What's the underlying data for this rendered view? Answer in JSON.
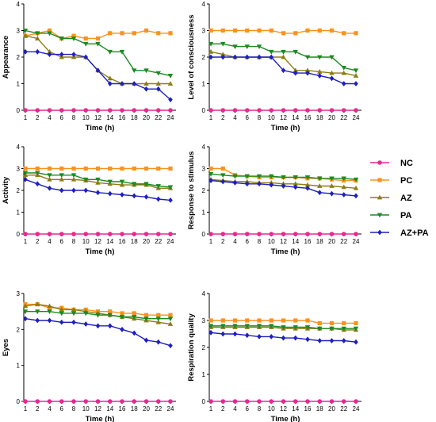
{
  "legend": [
    {
      "name": "NC",
      "color": "#e8298f",
      "marker": "circle"
    },
    {
      "name": "PC",
      "color": "#f7931e",
      "marker": "square"
    },
    {
      "name": "AZ",
      "color": "#8c7d13",
      "marker": "triangle-up"
    },
    {
      "name": "PA",
      "color": "#1c8a21",
      "marker": "triangle-down"
    },
    {
      "name": "AZ+PA",
      "color": "#1f1fbf",
      "marker": "diamond"
    }
  ],
  "chart_data": [
    {
      "type": "line",
      "xlabel": "Time (h)",
      "ylabel": "Appearance",
      "ylim": [
        0,
        4
      ],
      "yticks": [
        "0",
        "1",
        "2",
        "3",
        "4"
      ],
      "x": [
        "1",
        "2",
        "4",
        "6",
        "8",
        "10",
        "12",
        "14",
        "16",
        "18",
        "20",
        "22",
        "24"
      ],
      "series": [
        {
          "name": "NC",
          "values": [
            0,
            0,
            0,
            0,
            0,
            0,
            0,
            0,
            0,
            0,
            0,
            0,
            0
          ]
        },
        {
          "name": "PC",
          "values": [
            2.8,
            2.9,
            3.0,
            2.7,
            2.8,
            2.7,
            2.7,
            2.9,
            2.9,
            2.9,
            3.0,
            2.9,
            2.9
          ]
        },
        {
          "name": "AZ",
          "values": [
            2.8,
            2.7,
            2.2,
            2.0,
            2.0,
            2.0,
            1.5,
            1.2,
            1.0,
            1.0,
            1.0,
            1.0,
            1.0
          ]
        },
        {
          "name": "PA",
          "values": [
            3.0,
            2.9,
            2.9,
            2.7,
            2.7,
            2.5,
            2.5,
            2.2,
            2.2,
            1.5,
            1.5,
            1.4,
            1.3
          ]
        },
        {
          "name": "AZ+PA",
          "values": [
            2.2,
            2.2,
            2.1,
            2.1,
            2.1,
            2.0,
            1.5,
            1.0,
            1.0,
            1.0,
            0.8,
            0.8,
            0.4
          ]
        }
      ]
    },
    {
      "type": "line",
      "xlabel": "Time (h)",
      "ylabel": "Level of consciousness",
      "ylim": [
        0,
        4
      ],
      "yticks": [
        "0",
        "1",
        "2",
        "3",
        "4"
      ],
      "x": [
        "1",
        "2",
        "4",
        "6",
        "8",
        "10",
        "12",
        "14",
        "16",
        "18",
        "20",
        "22",
        "24"
      ],
      "series": [
        {
          "name": "NC",
          "values": [
            0,
            0,
            0,
            0,
            0,
            0,
            0,
            0,
            0,
            0,
            0,
            0,
            0
          ]
        },
        {
          "name": "PC",
          "values": [
            3.0,
            3.0,
            3.0,
            3.0,
            3.0,
            3.0,
            2.9,
            2.9,
            3.0,
            3.0,
            3.0,
            2.9,
            2.9
          ]
        },
        {
          "name": "AZ",
          "values": [
            2.2,
            2.1,
            2.0,
            2.0,
            2.0,
            2.0,
            2.0,
            1.5,
            1.5,
            1.45,
            1.4,
            1.4,
            1.3
          ]
        },
        {
          "name": "PA",
          "values": [
            2.5,
            2.5,
            2.4,
            2.4,
            2.4,
            2.2,
            2.2,
            2.2,
            2.0,
            2.0,
            2.0,
            1.6,
            1.5
          ]
        },
        {
          "name": "AZ+PA",
          "values": [
            2.0,
            2.0,
            2.0,
            2.0,
            2.0,
            2.0,
            1.5,
            1.4,
            1.4,
            1.3,
            1.2,
            1.0,
            1.0
          ]
        }
      ]
    },
    {
      "type": "line",
      "xlabel": "Time (h)",
      "ylabel": "Activity",
      "ylim": [
        0,
        4
      ],
      "yticks": [
        "0",
        "1",
        "2",
        "3",
        "4"
      ],
      "x": [
        "1",
        "2",
        "4",
        "6",
        "8",
        "10",
        "12",
        "14",
        "16",
        "18",
        "20",
        "22",
        "24"
      ],
      "series": [
        {
          "name": "NC",
          "values": [
            0,
            0,
            0,
            0,
            0,
            0,
            0,
            0,
            0,
            0,
            0,
            0,
            0
          ]
        },
        {
          "name": "PC",
          "values": [
            3.0,
            3.0,
            3.0,
            3.0,
            3.0,
            3.0,
            3.0,
            3.0,
            3.0,
            3.0,
            3.0,
            3.0,
            3.0
          ]
        },
        {
          "name": "AZ",
          "values": [
            2.7,
            2.7,
            2.5,
            2.5,
            2.5,
            2.45,
            2.35,
            2.3,
            2.25,
            2.25,
            2.25,
            2.1,
            2.1
          ]
        },
        {
          "name": "PA",
          "values": [
            2.8,
            2.8,
            2.7,
            2.7,
            2.7,
            2.5,
            2.5,
            2.4,
            2.4,
            2.3,
            2.3,
            2.2,
            2.15
          ]
        },
        {
          "name": "AZ+PA",
          "values": [
            2.5,
            2.3,
            2.1,
            2.0,
            2.0,
            2.0,
            1.9,
            1.85,
            1.8,
            1.75,
            1.7,
            1.6,
            1.55
          ]
        }
      ]
    },
    {
      "type": "line",
      "xlabel": "Time (h)",
      "ylabel": "Response to stimulus",
      "ylim": [
        0,
        4
      ],
      "yticks": [
        "0",
        "1",
        "2",
        "3",
        "4"
      ],
      "x": [
        "1",
        "2",
        "4",
        "6",
        "8",
        "10",
        "12",
        "14",
        "16",
        "18",
        "20",
        "22",
        "24"
      ],
      "series": [
        {
          "name": "NC",
          "values": [
            0,
            0,
            0,
            0,
            0,
            0,
            0,
            0,
            0,
            0,
            0,
            0,
            0
          ]
        },
        {
          "name": "PC",
          "values": [
            3.0,
            3.0,
            2.7,
            2.65,
            2.6,
            2.6,
            2.6,
            2.6,
            2.55,
            2.55,
            2.5,
            2.45,
            2.45
          ]
        },
        {
          "name": "AZ",
          "values": [
            2.5,
            2.45,
            2.4,
            2.4,
            2.35,
            2.35,
            2.3,
            2.3,
            2.25,
            2.2,
            2.2,
            2.15,
            2.1
          ]
        },
        {
          "name": "PA",
          "values": [
            2.75,
            2.7,
            2.65,
            2.65,
            2.65,
            2.65,
            2.6,
            2.6,
            2.6,
            2.55,
            2.55,
            2.55,
            2.5
          ]
        },
        {
          "name": "AZ+PA",
          "values": [
            2.45,
            2.4,
            2.35,
            2.3,
            2.3,
            2.25,
            2.2,
            2.15,
            2.1,
            1.9,
            1.85,
            1.8,
            1.75
          ]
        }
      ]
    },
    {
      "type": "line",
      "xlabel": "Time (h)",
      "ylabel": "Eyes",
      "ylim": [
        0,
        3
      ],
      "yticks": [
        "0",
        "1",
        "2",
        "3"
      ],
      "x": [
        "1",
        "2",
        "4",
        "6",
        "8",
        "10",
        "12",
        "14",
        "16",
        "18",
        "20",
        "22",
        "24"
      ],
      "series": [
        {
          "name": "NC",
          "values": [
            0,
            0,
            0,
            0,
            0,
            0,
            0,
            0,
            0,
            0,
            0,
            0,
            0
          ]
        },
        {
          "name": "PC",
          "values": [
            2.7,
            2.7,
            2.6,
            2.6,
            2.55,
            2.55,
            2.5,
            2.5,
            2.45,
            2.45,
            2.4,
            2.4,
            2.4
          ]
        },
        {
          "name": "AZ",
          "values": [
            2.65,
            2.7,
            2.65,
            2.55,
            2.55,
            2.5,
            2.45,
            2.4,
            2.35,
            2.3,
            2.25,
            2.2,
            2.15
          ]
        },
        {
          "name": "PA",
          "values": [
            2.5,
            2.5,
            2.5,
            2.45,
            2.45,
            2.45,
            2.4,
            2.4,
            2.35,
            2.35,
            2.3,
            2.3,
            2.3
          ]
        },
        {
          "name": "AZ+PA",
          "values": [
            2.3,
            2.25,
            2.25,
            2.2,
            2.2,
            2.15,
            2.1,
            2.1,
            2.0,
            1.9,
            1.7,
            1.65,
            1.55
          ]
        }
      ]
    },
    {
      "type": "line",
      "xlabel": "Time (h)",
      "ylabel": "Respiration quality",
      "ylim": [
        0,
        4
      ],
      "yticks": [
        "0",
        "1",
        "2",
        "3",
        "4"
      ],
      "x": [
        "1",
        "2",
        "4",
        "6",
        "8",
        "10",
        "12",
        "14",
        "16",
        "18",
        "20",
        "22",
        "24"
      ],
      "series": [
        {
          "name": "NC",
          "values": [
            0,
            0,
            0,
            0,
            0,
            0,
            0,
            0,
            0,
            0,
            0,
            0,
            0
          ]
        },
        {
          "name": "PC",
          "values": [
            3.0,
            3.0,
            3.0,
            3.0,
            3.0,
            3.0,
            3.0,
            3.0,
            3.0,
            2.9,
            2.9,
            2.9,
            2.9
          ]
        },
        {
          "name": "AZ",
          "values": [
            2.75,
            2.75,
            2.75,
            2.75,
            2.75,
            2.75,
            2.7,
            2.7,
            2.7,
            2.7,
            2.7,
            2.65,
            2.65
          ]
        },
        {
          "name": "PA",
          "values": [
            2.8,
            2.8,
            2.8,
            2.8,
            2.8,
            2.8,
            2.75,
            2.75,
            2.75,
            2.7,
            2.7,
            2.7,
            2.7
          ]
        },
        {
          "name": "AZ+PA",
          "values": [
            2.55,
            2.5,
            2.5,
            2.45,
            2.4,
            2.4,
            2.35,
            2.35,
            2.3,
            2.25,
            2.25,
            2.25,
            2.2
          ]
        }
      ]
    }
  ]
}
